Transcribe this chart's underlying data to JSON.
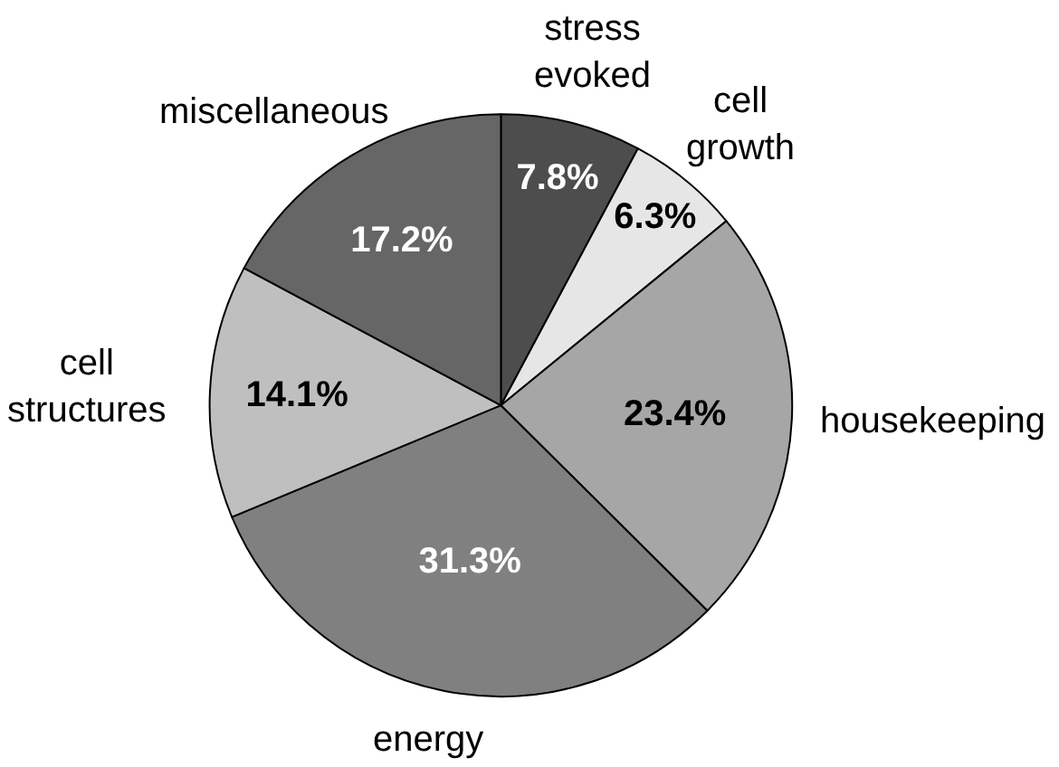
{
  "chart_data": {
    "type": "pie",
    "categories": [
      "stress evoked",
      "cell growth",
      "housekeeping",
      "energy",
      "cell structures",
      "miscellaneous"
    ],
    "values": [
      7.8,
      6.3,
      23.4,
      31.3,
      14.1,
      17.2
    ],
    "value_labels": [
      "7.8%",
      "6.3%",
      "23.4%",
      "31.3%",
      "14.1%",
      "17.2%"
    ],
    "colors": [
      "#4d4d4d",
      "#e6e6e6",
      "#a6a6a6",
      "#808080",
      "#bfbfbf",
      "#666666"
    ]
  }
}
